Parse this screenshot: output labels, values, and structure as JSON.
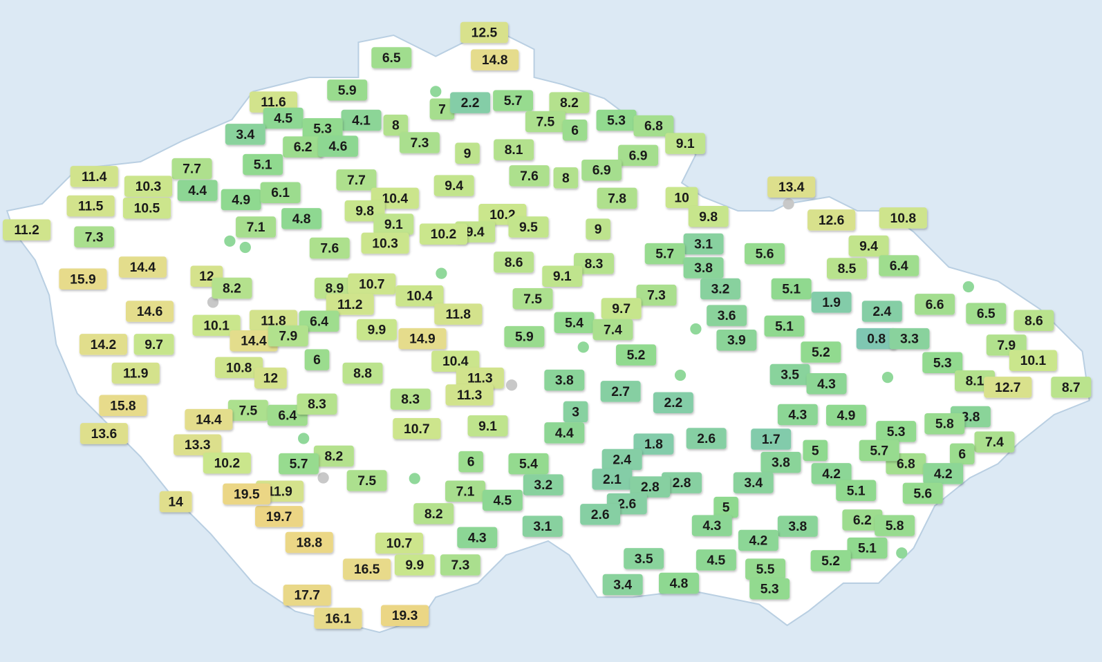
{
  "map": {
    "labels": [
      12.5,
      14.8,
      6.5,
      5.9,
      11.6,
      4.5,
      4.1,
      5.3,
      3.4,
      8,
      6.2,
      4.6,
      7.3,
      7,
      2.2,
      5.7,
      8.2,
      7.5,
      6,
      5.3,
      6.8,
      9.1,
      9,
      8.1,
      6.9,
      6.9,
      7.6,
      8,
      7.8,
      10,
      9.8,
      13.4,
      12.6,
      10.8,
      7.7,
      4.4,
      5.1,
      4.9,
      6.1,
      4.8,
      7.7,
      10.4,
      9.4,
      11.4,
      10.3,
      11.5,
      10.5,
      11.2,
      7.3,
      7.1,
      9.8,
      9.1,
      10.2,
      9.4,
      9.5,
      10.2,
      10.3,
      7.6,
      9,
      3.1,
      9.4,
      5.6,
      5.7,
      8.3,
      8.6,
      3.8,
      8.5,
      6.4,
      14.4,
      15.9,
      12,
      8.2,
      8.9,
      10.7,
      10.4,
      9.1,
      3.2,
      7.3,
      7.5,
      5.1,
      1.9,
      2.4,
      6.6,
      6.5,
      8.6,
      14.6,
      11.2,
      11.8,
      9.7,
      3.6,
      10.1,
      11.8,
      6.4,
      9.9,
      5.4,
      7.4,
      5.1,
      14.2,
      9.7,
      14.4,
      7.9,
      14.9,
      5.9,
      3.9,
      0.8,
      3.3,
      7.9,
      6,
      10.8,
      11.9,
      10.4,
      5.2,
      5.2,
      5.3,
      10.1,
      12,
      8.8,
      11.3,
      3.8,
      3.5,
      2.7,
      4.3,
      8.1,
      12.7,
      8.7,
      15.8,
      7.5,
      6.4,
      8.3,
      8.3,
      11.3,
      2.2,
      3,
      4.3,
      4.9,
      3.8,
      14.4,
      10.7,
      9.1,
      5.8,
      13.6,
      4.4,
      5.3,
      7.4,
      13.3,
      2.6,
      1.7,
      1.8,
      5,
      6,
      8.2,
      5.7,
      10.2,
      6,
      5.4,
      2.4,
      3.8,
      6.8,
      5.7,
      4.2,
      7.5,
      4.2,
      3.2,
      2.1,
      2.8,
      3.4,
      14,
      11.9,
      7.1,
      5.1,
      5.6,
      4.5,
      2.8,
      2.6,
      5,
      8.2,
      2.6,
      19.7,
      6.2,
      5.8,
      3.1,
      4.3,
      3.8,
      18.8,
      10.7,
      4.3,
      4.2,
      5.1,
      3.5,
      4.5,
      16.5,
      9.9,
      7.3,
      5.5,
      5.2,
      3.4,
      4.8,
      5.3,
      17.7,
      16.1,
      19.3,
      19.5
    ]
  }
}
